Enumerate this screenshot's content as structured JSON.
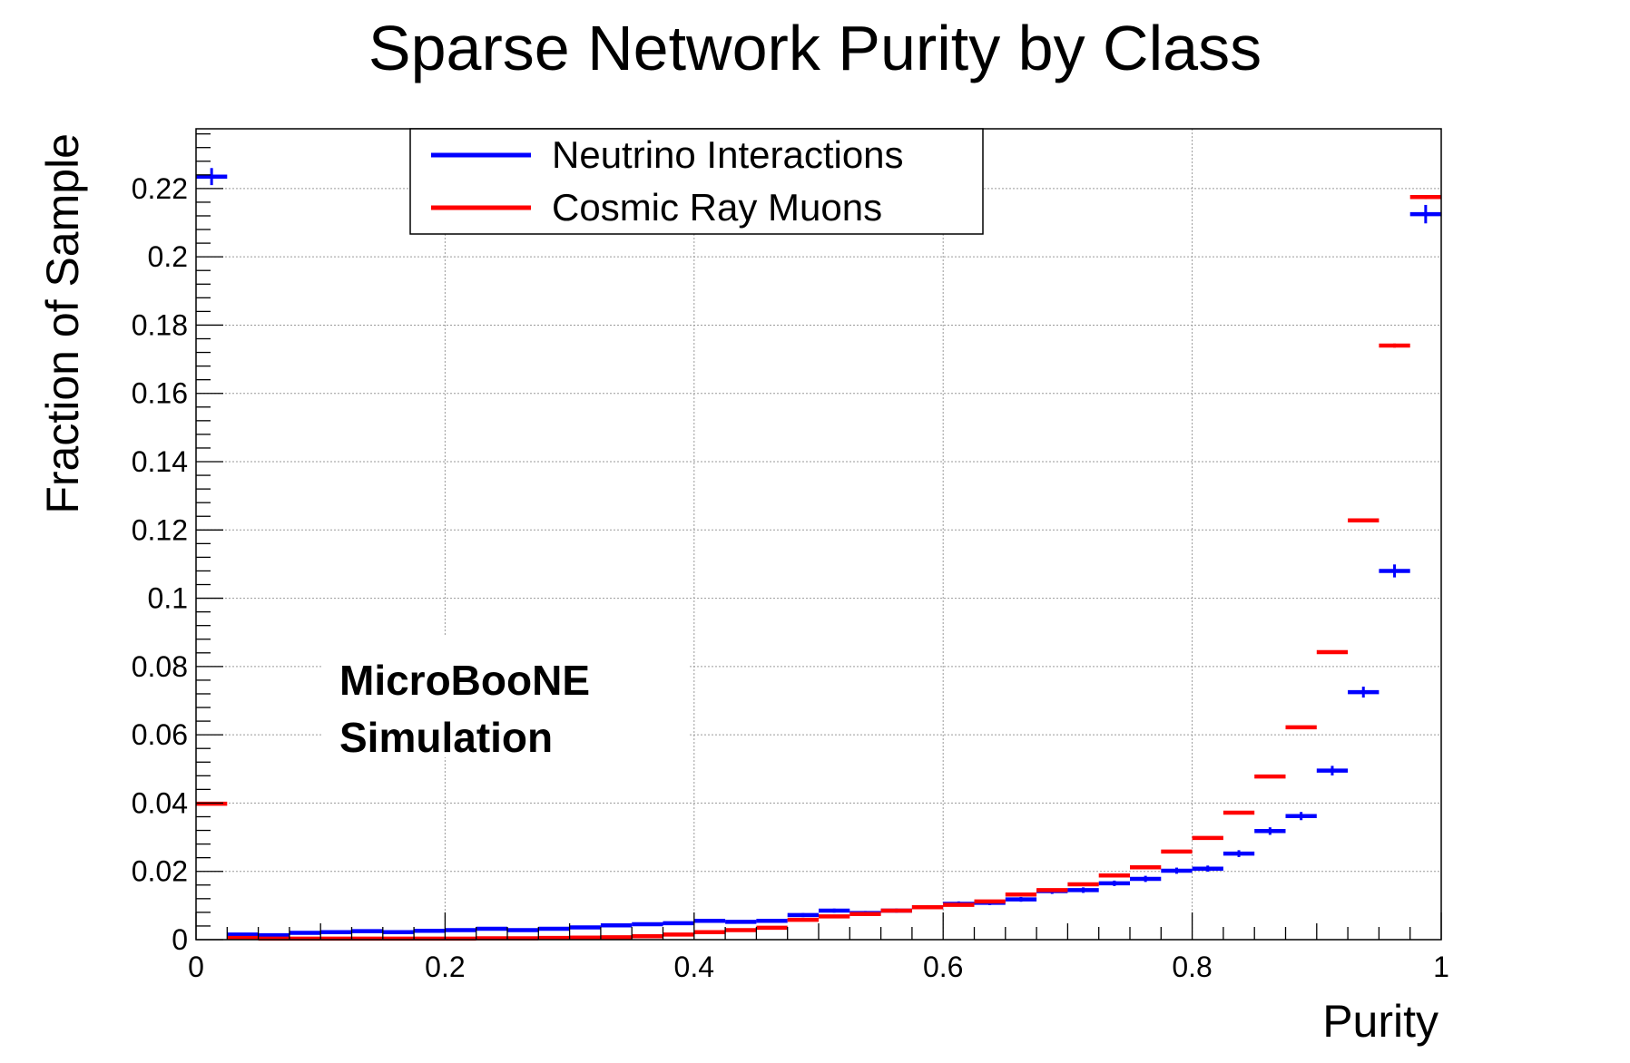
{
  "chart_data": {
    "type": "histogram",
    "title": "Sparse Network Purity by Class",
    "xlabel": "Purity",
    "ylabel": "Fraction of Sample",
    "xlim": [
      0,
      1
    ],
    "ylim": [
      0,
      0.2375
    ],
    "grid": true,
    "legend_position": "top-center",
    "x_ticks": [
      0,
      0.2,
      0.4,
      0.6,
      0.8,
      1
    ],
    "x_tick_labels": [
      "0",
      "0.2",
      "0.4",
      "0.6",
      "0.8",
      "1"
    ],
    "y_ticks": [
      0,
      0.02,
      0.04,
      0.06,
      0.08,
      0.1,
      0.12,
      0.14,
      0.16,
      0.18,
      0.2,
      0.22
    ],
    "y_tick_labels": [
      "0",
      "0.02",
      "0.04",
      "0.06",
      "0.08",
      "0.1",
      "0.12",
      "0.14",
      "0.16",
      "0.18",
      "0.2",
      "0.22"
    ],
    "annotation": [
      "MicroBooNE",
      "Simulation"
    ],
    "bin_edges": [
      0,
      0.025,
      0.05,
      0.075,
      0.1,
      0.125,
      0.15,
      0.175,
      0.2,
      0.225,
      0.25,
      0.275,
      0.3,
      0.325,
      0.35,
      0.375,
      0.4,
      0.425,
      0.45,
      0.475,
      0.5,
      0.525,
      0.55,
      0.575,
      0.6,
      0.625,
      0.65,
      0.675,
      0.7,
      0.725,
      0.75,
      0.775,
      0.8,
      0.825,
      0.85,
      0.875,
      0.9,
      0.925,
      0.95,
      0.975,
      1.0
    ],
    "series": [
      {
        "name": "Neutrino Interactions",
        "color": "#0000ff",
        "values": [
          0.2235,
          0.0015,
          0.0013,
          0.002,
          0.0022,
          0.0025,
          0.0022,
          0.0026,
          0.0028,
          0.0032,
          0.0028,
          0.0032,
          0.0036,
          0.0042,
          0.0045,
          0.0048,
          0.0055,
          0.0052,
          0.0055,
          0.0072,
          0.0085,
          0.0078,
          0.0085,
          0.0095,
          0.0105,
          0.0108,
          0.0118,
          0.0142,
          0.0145,
          0.0165,
          0.0178,
          0.0202,
          0.0208,
          0.0252,
          0.0318,
          0.0362,
          0.0495,
          0.0725,
          0.108,
          0.2125
        ],
        "errors": [
          0.0025,
          0.0003,
          0.0003,
          0.0004,
          0.0004,
          0.0004,
          0.0004,
          0.0004,
          0.0004,
          0.0004,
          0.0004,
          0.0004,
          0.0004,
          0.0005,
          0.0005,
          0.0005,
          0.0005,
          0.0005,
          0.0005,
          0.0006,
          0.0006,
          0.0006,
          0.0006,
          0.0006,
          0.0007,
          0.0007,
          0.0007,
          0.0008,
          0.0008,
          0.0008,
          0.0009,
          0.0009,
          0.0009,
          0.001,
          0.0011,
          0.0012,
          0.0014,
          0.0016,
          0.0019,
          0.0027
        ]
      },
      {
        "name": "Cosmic Ray Muons",
        "color": "#ff0000",
        "values": [
          0.0398,
          0.0005,
          0.0003,
          0.0003,
          0.0003,
          0.0003,
          0.0003,
          0.0003,
          0.0003,
          0.0004,
          0.0004,
          0.0005,
          0.0006,
          0.0007,
          0.001,
          0.0015,
          0.0022,
          0.0028,
          0.0035,
          0.0058,
          0.0068,
          0.0075,
          0.0085,
          0.0095,
          0.0102,
          0.0112,
          0.0132,
          0.0145,
          0.0162,
          0.0188,
          0.0212,
          0.0258,
          0.0298,
          0.0372,
          0.0478,
          0.0622,
          0.0842,
          0.1228,
          0.174,
          0.2175
        ],
        "errors": [
          0.0003,
          0.0001,
          0.0001,
          0.0001,
          0.0001,
          0.0001,
          0.0001,
          0.0001,
          0.0001,
          0.0001,
          0.0001,
          0.0001,
          0.0001,
          0.0001,
          0.0001,
          0.0001,
          0.0001,
          0.0001,
          0.0001,
          0.0002,
          0.0002,
          0.0002,
          0.0002,
          0.0002,
          0.0002,
          0.0002,
          0.0002,
          0.0002,
          0.0002,
          0.0003,
          0.0003,
          0.0003,
          0.0003,
          0.0003,
          0.0003,
          0.0004,
          0.0004,
          0.0005,
          0.0006,
          0.0006
        ]
      }
    ]
  }
}
